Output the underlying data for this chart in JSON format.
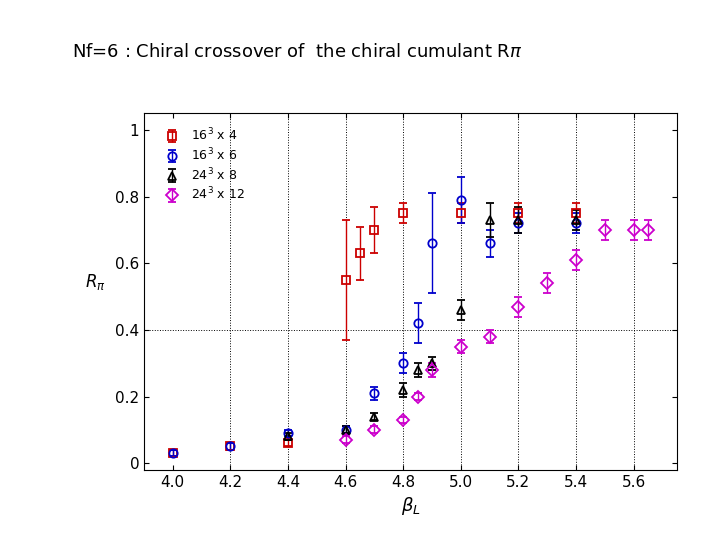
{
  "title": "Nf=6 : Chiral crossover of  the chiral cumulant Rπ",
  "xlabel": "β_L",
  "ylabel": "R_π",
  "xlim": [
    3.9,
    5.75
  ],
  "ylim": [
    -0.02,
    1.05
  ],
  "xticks": [
    4.0,
    4.2,
    4.4,
    4.6,
    4.8,
    5.0,
    5.2,
    5.4,
    5.6
  ],
  "yticks": [
    0,
    0.2,
    0.4,
    0.6,
    0.8,
    1.0
  ],
  "hline_y": 0.4,
  "vlines": [
    4.2,
    4.4,
    4.6,
    4.8,
    5.0,
    5.2,
    5.4,
    5.6
  ],
  "series": [
    {
      "label": "16$^3$ x 4",
      "color": "#cc0000",
      "marker": "s",
      "x": [
        4.0,
        4.2,
        4.4,
        4.6,
        4.65,
        4.7,
        4.8,
        5.0,
        5.2,
        5.4
      ],
      "y": [
        0.03,
        0.05,
        0.06,
        0.55,
        0.63,
        0.7,
        0.75,
        0.75,
        0.75,
        0.75
      ],
      "yerr": [
        0.01,
        0.01,
        0.01,
        0.18,
        0.08,
        0.07,
        0.03,
        0.03,
        0.03,
        0.03
      ]
    },
    {
      "label": "16$^3$ x 6",
      "color": "#0000cc",
      "marker": "o",
      "x": [
        4.0,
        4.2,
        4.4,
        4.6,
        4.7,
        4.8,
        4.85,
        4.9,
        5.0,
        5.1,
        5.2,
        5.4
      ],
      "y": [
        0.03,
        0.05,
        0.09,
        0.1,
        0.21,
        0.3,
        0.42,
        0.66,
        0.79,
        0.66,
        0.72,
        0.72
      ],
      "yerr": [
        0.01,
        0.01,
        0.01,
        0.01,
        0.02,
        0.03,
        0.06,
        0.15,
        0.07,
        0.04,
        0.03,
        0.03
      ]
    },
    {
      "label": "24$^3$ x 8",
      "color": "#000000",
      "marker": "^",
      "x": [
        4.4,
        4.6,
        4.7,
        4.8,
        4.85,
        4.9,
        5.0,
        5.1,
        5.2,
        5.4
      ],
      "y": [
        0.08,
        0.1,
        0.14,
        0.22,
        0.28,
        0.3,
        0.46,
        0.73,
        0.73,
        0.73
      ],
      "yerr": [
        0.01,
        0.01,
        0.01,
        0.02,
        0.02,
        0.02,
        0.03,
        0.05,
        0.04,
        0.03
      ]
    },
    {
      "label": "24$^3$ x 12",
      "color": "#cc00cc",
      "marker": "D",
      "x": [
        4.6,
        4.7,
        4.8,
        4.85,
        4.9,
        5.0,
        5.1,
        5.2,
        5.3,
        5.4,
        5.5,
        5.6,
        5.65
      ],
      "y": [
        0.07,
        0.1,
        0.13,
        0.2,
        0.28,
        0.35,
        0.38,
        0.47,
        0.54,
        0.61,
        0.7,
        0.7,
        0.7
      ],
      "yerr": [
        0.01,
        0.01,
        0.01,
        0.01,
        0.02,
        0.02,
        0.02,
        0.03,
        0.03,
        0.03,
        0.03,
        0.03,
        0.03
      ]
    }
  ]
}
